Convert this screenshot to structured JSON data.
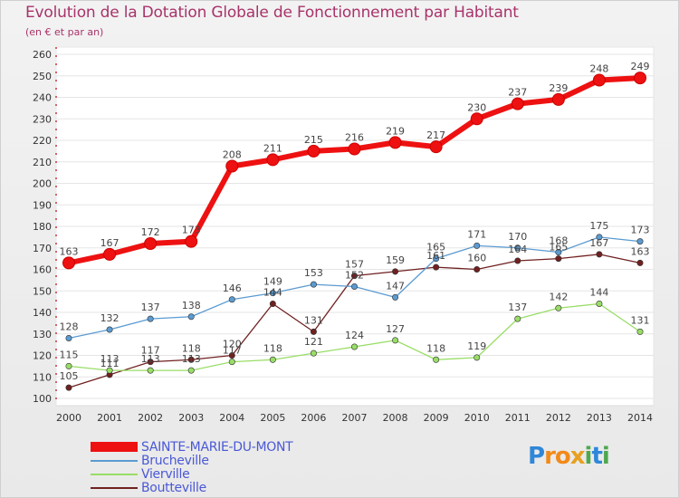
{
  "title": "Evolution de la Dotation Globale de Fonctionnement par Habitant",
  "subtitle": "(en € et par an)",
  "logo": {
    "text": "Proxiti",
    "letters": [
      "P",
      "r",
      "o",
      "x",
      "i",
      "t",
      "i"
    ],
    "colors": [
      "#2f87d8",
      "#f28a1a",
      "#f28a1a",
      "#e8a020",
      "#4fa84f",
      "#2f87d8",
      "#4fa84f"
    ]
  },
  "chart_data": {
    "type": "line",
    "title": "Evolution de la Dotation Globale de Fonctionnement par Habitant",
    "subtitle": "(en € et par an)",
    "xlabel": "",
    "ylabel": "",
    "ylim": [
      100,
      260
    ],
    "yticks": [
      100,
      110,
      120,
      130,
      140,
      150,
      160,
      170,
      180,
      190,
      200,
      210,
      220,
      230,
      240,
      250,
      260
    ],
    "x": [
      "2000",
      "2001",
      "2002",
      "2003",
      "2004",
      "2005",
      "2006",
      "2007",
      "2008",
      "2009",
      "2010",
      "2011",
      "2012",
      "2013",
      "2014"
    ],
    "grid": "horizontal",
    "legend": "bottom-left",
    "series": [
      {
        "name": "SAINTE-MARIE-DU-MONT",
        "color": "#ee1111",
        "values": [
          163,
          167,
          172,
          173,
          208,
          211,
          215,
          216,
          219,
          217,
          230,
          237,
          239,
          248,
          249
        ]
      },
      {
        "name": "Brucheville",
        "color": "#5b9bd1",
        "values": [
          128,
          132,
          137,
          138,
          146,
          149,
          153,
          152,
          147,
          165,
          171,
          170,
          168,
          175,
          173
        ]
      },
      {
        "name": "Vierville",
        "color": "#99dd66",
        "values": [
          115,
          113,
          113,
          113,
          117,
          118,
          121,
          124,
          127,
          118,
          119,
          137,
          142,
          144,
          131
        ]
      },
      {
        "name": "Boutteville",
        "color": "#702020",
        "values": [
          105,
          111,
          117,
          118,
          120,
          144,
          131,
          157,
          159,
          161,
          160,
          164,
          165,
          167,
          163
        ]
      }
    ]
  }
}
